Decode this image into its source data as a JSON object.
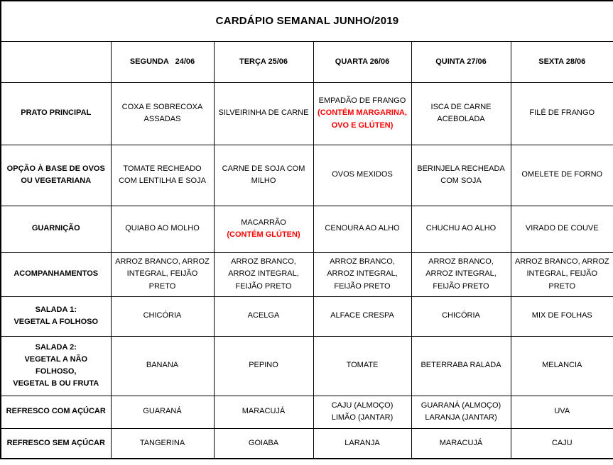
{
  "title": "CARDÁPIO SEMANAL JUNHO/2019",
  "colors": {
    "allergen_red": "#FF0000",
    "text": "#000000",
    "border": "#000000",
    "background": "#FFFFFF"
  },
  "table": {
    "columns": [
      "",
      "SEGUNDA   24/06",
      "TERÇA 25/06",
      "QUARTA 26/06",
      "QUINTA 27/06",
      "SEXTA 28/06"
    ],
    "rows": [
      {
        "header": "PRATO PRINCIPAL",
        "cells": [
          {
            "text": "COXA E SOBRECOXA ASSADAS",
            "allergen": ""
          },
          {
            "text": "SILVEIRINHA DE CARNE",
            "allergen": ""
          },
          {
            "text": "EMPADÃO DE FRANGO",
            "allergen": "(CONTÉM MARGARINA,\nOVO E GLÚTEN)"
          },
          {
            "text": "ISCA DE CARNE ACEBOLADA",
            "allergen": ""
          },
          {
            "text": "FILÉ DE FRANGO",
            "allergen": ""
          }
        ]
      },
      {
        "header": "OPÇÃO À BASE DE OVOS OU VEGETARIANA",
        "cells": [
          {
            "text": "TOMATE RECHEADO COM LENTILHA E SOJA",
            "allergen": ""
          },
          {
            "text": "CARNE DE SOJA COM MILHO",
            "allergen": ""
          },
          {
            "text": "OVOS MEXIDOS",
            "allergen": ""
          },
          {
            "text": "BERINJELA RECHEADA COM SOJA",
            "allergen": ""
          },
          {
            "text": "OMELETE DE FORNO",
            "allergen": ""
          }
        ]
      },
      {
        "header": "GUARNIÇÃO",
        "cells": [
          {
            "text": "QUIABO AO MOLHO",
            "allergen": ""
          },
          {
            "text": "MACARRÃO",
            "allergen": "(CONTÉM GLÚTEN)"
          },
          {
            "text": "CENOURA AO ALHO",
            "allergen": ""
          },
          {
            "text": "CHUCHU AO ALHO",
            "allergen": ""
          },
          {
            "text": "VIRADO DE COUVE",
            "allergen": ""
          }
        ]
      },
      {
        "header": "ACOMPANHAMENTOS",
        "cells": [
          {
            "text": "ARROZ BRANCO, ARROZ INTEGRAL, FEIJÃO PRETO",
            "allergen": ""
          },
          {
            "text": "ARROZ BRANCO, ARROZ INTEGRAL, FEIJÃO PRETO",
            "allergen": ""
          },
          {
            "text": "ARROZ BRANCO, ARROZ INTEGRAL, FEIJÃO PRETO",
            "allergen": ""
          },
          {
            "text": "ARROZ BRANCO, ARROZ INTEGRAL, FEIJÃO PRETO",
            "allergen": ""
          },
          {
            "text": "ARROZ BRANCO, ARROZ INTEGRAL, FEIJÃO PRETO",
            "allergen": ""
          }
        ]
      },
      {
        "header": "SALADA 1:\nVEGETAL A FOLHOSO",
        "cells": [
          {
            "text": "CHICÓRIA",
            "allergen": ""
          },
          {
            "text": "ACELGA",
            "allergen": ""
          },
          {
            "text": "ALFACE CRESPA",
            "allergen": ""
          },
          {
            "text": "CHICÓRIA",
            "allergen": ""
          },
          {
            "text": "MIX DE FOLHAS",
            "allergen": ""
          }
        ]
      },
      {
        "header": "SALADA 2:\nVEGETAL A NÃO FOLHOSO,\nVEGETAL B OU FRUTA",
        "cells": [
          {
            "text": "BANANA",
            "allergen": ""
          },
          {
            "text": "PEPINO",
            "allergen": ""
          },
          {
            "text": "TOMATE",
            "allergen": ""
          },
          {
            "text": "BETERRABA RALADA",
            "allergen": ""
          },
          {
            "text": "MELANCIA",
            "allergen": ""
          }
        ]
      },
      {
        "header": "REFRESCO COM AÇÚCAR",
        "cells": [
          {
            "text": "GUARANÁ",
            "allergen": ""
          },
          {
            "text": "MARACUJÁ",
            "allergen": ""
          },
          {
            "text": "CAJU (ALMOÇO)\nLIMÃO (JANTAR)",
            "allergen": ""
          },
          {
            "text": "GUARANÁ (ALMOÇO)\nLARANJA (JANTAR)",
            "allergen": ""
          },
          {
            "text": "UVA",
            "allergen": ""
          }
        ]
      },
      {
        "header": "REFRESCO SEM AÇÚCAR",
        "cells": [
          {
            "text": "TANGERINA",
            "allergen": ""
          },
          {
            "text": "GOIABA",
            "allergen": ""
          },
          {
            "text": "LARANJA",
            "allergen": ""
          },
          {
            "text": "MARACUJÁ",
            "allergen": ""
          },
          {
            "text": "CAJU",
            "allergen": ""
          }
        ]
      }
    ]
  }
}
